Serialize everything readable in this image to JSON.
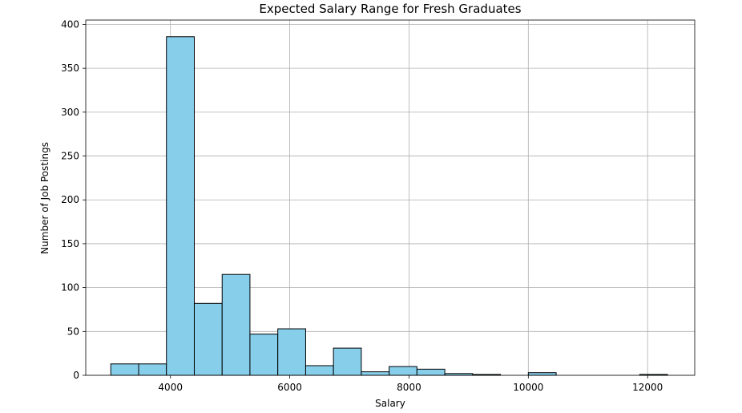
{
  "chart_data": {
    "type": "bar",
    "title": "Expected Salary Range for Fresh Graduates",
    "xlabel": "Salary",
    "ylabel": "Number of Job Postings",
    "xlim": [
      2580,
      12790
    ],
    "ylim": [
      0,
      405
    ],
    "xticks": [
      4000,
      6000,
      8000,
      10000,
      12000
    ],
    "yticks": [
      0,
      50,
      100,
      150,
      200,
      250,
      300,
      350,
      400
    ],
    "grid": true,
    "bar_color": "#87ceeb",
    "edge_color": "#000000",
    "bins": [
      {
        "start": 3000,
        "end": 3467,
        "count": 13
      },
      {
        "start": 3467,
        "end": 3933,
        "count": 13
      },
      {
        "start": 3933,
        "end": 4400,
        "count": 386
      },
      {
        "start": 4400,
        "end": 4867,
        "count": 82
      },
      {
        "start": 4867,
        "end": 5333,
        "count": 115
      },
      {
        "start": 5333,
        "end": 5800,
        "count": 47
      },
      {
        "start": 5800,
        "end": 6267,
        "count": 53
      },
      {
        "start": 6267,
        "end": 6733,
        "count": 11
      },
      {
        "start": 6733,
        "end": 7200,
        "count": 31
      },
      {
        "start": 7200,
        "end": 7667,
        "count": 4
      },
      {
        "start": 7667,
        "end": 8133,
        "count": 10
      },
      {
        "start": 8133,
        "end": 8600,
        "count": 7
      },
      {
        "start": 8600,
        "end": 9067,
        "count": 2
      },
      {
        "start": 9067,
        "end": 9533,
        "count": 1
      },
      {
        "start": 9533,
        "end": 10000,
        "count": 0
      },
      {
        "start": 10000,
        "end": 10467,
        "count": 3
      },
      {
        "start": 10467,
        "end": 10933,
        "count": 0
      },
      {
        "start": 10933,
        "end": 11400,
        "count": 0
      },
      {
        "start": 11400,
        "end": 11867,
        "count": 0
      },
      {
        "start": 11867,
        "end": 12333,
        "count": 1
      }
    ]
  }
}
